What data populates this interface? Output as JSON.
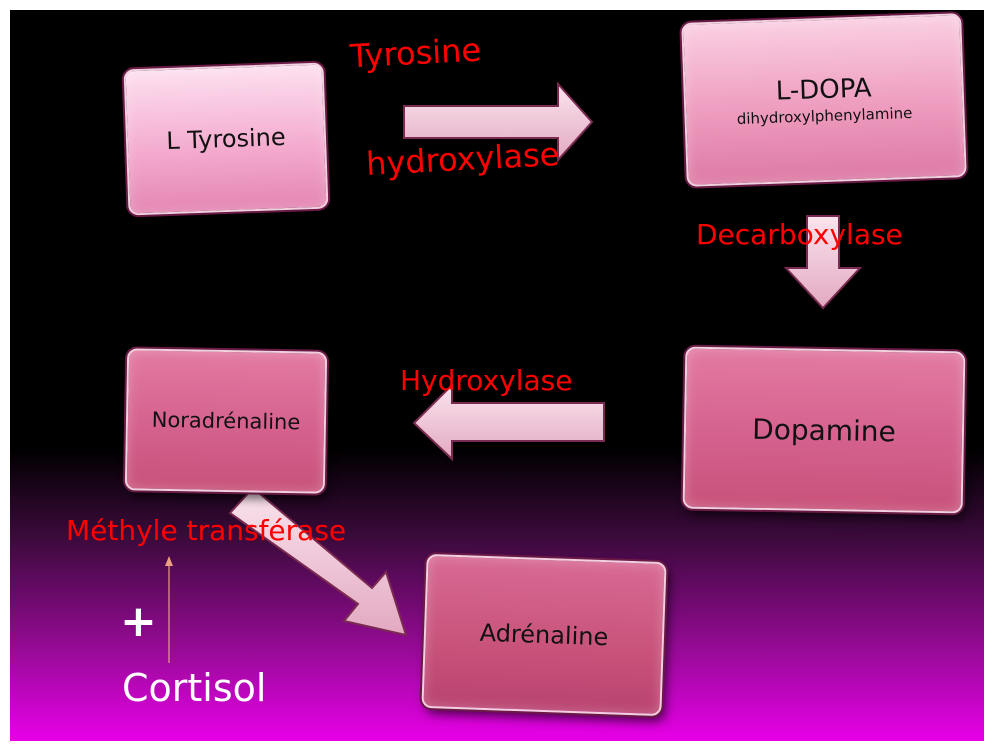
{
  "nodes": {
    "l_tyrosine": "L Tyrosine",
    "l_dopa": "L-DOPA",
    "l_dopa_sub": "dihydroxylphenylamine",
    "dopamine": "Dopamine",
    "noradrenaline": "Noradrénaline",
    "adrenaline": "Adrénaline"
  },
  "enzymes": {
    "tyrosine_line1": "Tyrosine",
    "tyrosine_line2": "hydroxylase",
    "decarboxylase": "Decarboxylase",
    "hydroxylase": "Hydroxylase",
    "methyl_transferase": "Méthyle transférase"
  },
  "cofactor": {
    "plus": "+",
    "cortisol": "Cortisol"
  },
  "colors": {
    "enzyme_text": "#ff0000",
    "box_light": "#f4b6d6",
    "box_dark": "#c8527a",
    "arrow_fill": "#f2cfe0",
    "background_bottom": "#e800e8"
  }
}
